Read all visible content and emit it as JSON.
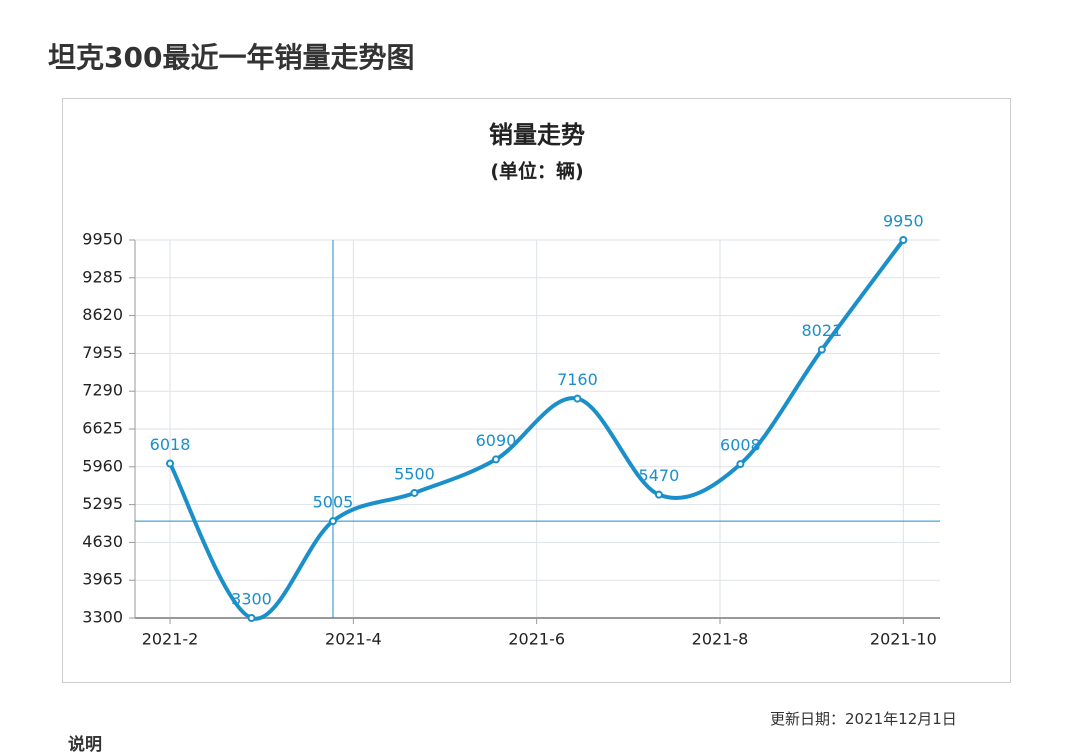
{
  "heading": "坦克300最近一年销量走势图",
  "update_date": "更新日期：2021年12月1日",
  "note_heading": "说明",
  "chart_data": {
    "type": "line",
    "title": "销量走势",
    "subtitle": "(单位：辆)",
    "x": [
      0,
      1,
      2,
      3,
      4,
      5,
      6,
      7,
      8,
      9
    ],
    "xlim": [
      -0.43,
      9.45
    ],
    "xticks": [
      {
        "value": 0,
        "label": "2021-2"
      },
      {
        "value": 2.25,
        "label": "2021-4"
      },
      {
        "value": 4.5,
        "label": "2021-6"
      },
      {
        "value": 6.75,
        "label": "2021-8"
      },
      {
        "value": 9,
        "label": "2021-10"
      }
    ],
    "ylim": [
      3300,
      9950
    ],
    "yticks": [
      3300,
      3965,
      4630,
      5295,
      5960,
      6625,
      7290,
      7955,
      8620,
      9285,
      9950
    ],
    "grid": true,
    "series": [
      {
        "name": "销量",
        "color": "#1a8fc9",
        "values": [
          6018,
          3300,
          5005,
          5500,
          6090,
          7160,
          5470,
          6008,
          8021,
          9950
        ]
      }
    ]
  }
}
